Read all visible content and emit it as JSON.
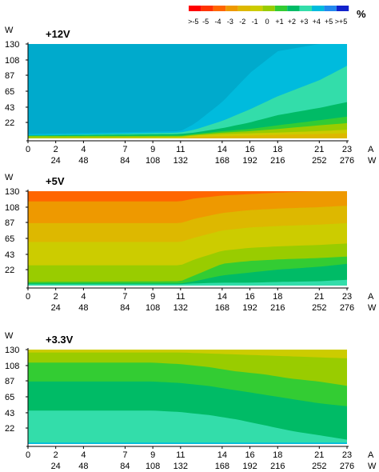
{
  "legend": {
    "unit": "%",
    "labels": [
      ">-5",
      "-5",
      "-4",
      "-3",
      "-2",
      "-1",
      "0",
      "+1",
      "+2",
      "+3",
      "+4",
      "+5",
      ">+5"
    ],
    "colors": [
      "#ff0000",
      "#ff3300",
      "#ff6600",
      "#ee9900",
      "#ddb800",
      "#cccc00",
      "#99cc00",
      "#33cc33",
      "#00bb66",
      "#33ddaa",
      "#00bbdd",
      "#2288ee",
      "#1122cc"
    ]
  },
  "x_axis": {
    "unit_a": "A",
    "unit_w": "W",
    "amp_ticks": [
      "0",
      "2",
      "4",
      "7",
      "9",
      "11",
      "14",
      "16",
      "18",
      "21",
      "23"
    ],
    "watt_ticks": [
      "24",
      "48",
      "84",
      "108",
      "132",
      "168",
      "192",
      "216",
      "252",
      "276"
    ]
  },
  "y_axis": {
    "unit": "W",
    "ticks": [
      "130",
      "108",
      "87",
      "65",
      "43",
      "22"
    ]
  },
  "chart_data": [
    {
      "type": "heatmap",
      "title": "+12V",
      "x_range_amps": [
        0,
        23
      ],
      "y_range_watts": [
        0,
        130
      ],
      "bands_bottom_to_top": [
        {
          "color": "#ddb800",
          "x_amps": [
            0,
            23
          ],
          "upper_boundary_watts": [
            [
              0,
              0
            ],
            [
              11,
              0
            ],
            [
              12,
              2
            ],
            [
              14,
              3
            ],
            [
              16,
              4
            ],
            [
              18,
              5
            ],
            [
              21,
              6
            ],
            [
              23,
              7
            ]
          ]
        },
        {
          "color": "#cccc00",
          "x_amps": [
            0,
            23
          ],
          "upper_boundary_watts": [
            [
              0,
              0
            ],
            [
              11,
              2
            ],
            [
              12,
              4
            ],
            [
              14,
              6
            ],
            [
              16,
              7
            ],
            [
              18,
              8
            ],
            [
              21,
              10
            ],
            [
              23,
              12
            ]
          ]
        },
        {
          "color": "#99cc00",
          "x_amps": [
            0,
            23
          ],
          "upper_boundary_watts": [
            [
              0,
              3
            ],
            [
              11,
              3
            ],
            [
              12,
              5
            ],
            [
              14,
              8
            ],
            [
              16,
              10
            ],
            [
              18,
              13
            ],
            [
              21,
              18
            ],
            [
              23,
              21
            ]
          ]
        },
        {
          "color": "#33cc33",
          "x_amps": [
            0,
            23
          ],
          "upper_boundary_watts": [
            [
              0,
              3
            ],
            [
              11,
              4
            ],
            [
              12,
              6
            ],
            [
              14,
              10
            ],
            [
              16,
              13
            ],
            [
              18,
              18
            ],
            [
              21,
              25
            ],
            [
              23,
              30
            ]
          ]
        },
        {
          "color": "#00bb66",
          "x_amps": [
            0,
            23
          ],
          "upper_boundary_watts": [
            [
              0,
              4
            ],
            [
              11,
              6
            ],
            [
              12,
              8
            ],
            [
              14,
              14
            ],
            [
              16,
              22
            ],
            [
              18,
              32
            ],
            [
              21,
              42
            ],
            [
              23,
              50
            ]
          ]
        },
        {
          "color": "#33ddaa",
          "x_amps": [
            0,
            23
          ],
          "upper_boundary_watts": [
            [
              0,
              4
            ],
            [
              11,
              8
            ],
            [
              12,
              12
            ],
            [
              14,
              24
            ],
            [
              16,
              40
            ],
            [
              18,
              58
            ],
            [
              21,
              80
            ],
            [
              23,
              100
            ]
          ]
        },
        {
          "color": "#00bbdd",
          "x_amps": [
            0,
            23
          ],
          "upper_boundary_watts": [
            [
              0,
              6
            ],
            [
              11,
              10
            ],
            [
              12,
              20
            ],
            [
              14,
              50
            ],
            [
              16,
              90
            ],
            [
              18,
              120
            ],
            [
              21,
              130
            ],
            [
              23,
              130
            ]
          ]
        },
        {
          "color": "#00aacc",
          "x_amps": [
            0,
            23
          ],
          "upper_boundary_watts": [
            [
              0,
              130
            ],
            [
              23,
              130
            ]
          ]
        }
      ]
    },
    {
      "type": "heatmap",
      "title": "+5V",
      "x_range_amps": [
        0,
        23
      ],
      "y_range_watts": [
        0,
        130
      ],
      "bands_bottom_to_top": [
        {
          "color": "#33ddaa",
          "upper_boundary_watts": [
            [
              0,
              2
            ],
            [
              11,
              2
            ],
            [
              12,
              3
            ],
            [
              14,
              4
            ],
            [
              16,
              4
            ],
            [
              18,
              5
            ],
            [
              21,
              6
            ],
            [
              23,
              8
            ]
          ]
        },
        {
          "color": "#00bb66",
          "upper_boundary_watts": [
            [
              0,
              3
            ],
            [
              11,
              3
            ],
            [
              12,
              6
            ],
            [
              14,
              14
            ],
            [
              16,
              18
            ],
            [
              18,
              22
            ],
            [
              21,
              26
            ],
            [
              23,
              30
            ]
          ]
        },
        {
          "color": "#33cc33",
          "upper_boundary_watts": [
            [
              0,
              5
            ],
            [
              11,
              6
            ],
            [
              12,
              14
            ],
            [
              14,
              30
            ],
            [
              16,
              34
            ],
            [
              18,
              36
            ],
            [
              21,
              38
            ],
            [
              23,
              40
            ]
          ]
        },
        {
          "color": "#99cc00",
          "upper_boundary_watts": [
            [
              0,
              28
            ],
            [
              11,
              28
            ],
            [
              12,
              36
            ],
            [
              14,
              48
            ],
            [
              16,
              52
            ],
            [
              18,
              54
            ],
            [
              21,
              56
            ],
            [
              23,
              58
            ]
          ]
        },
        {
          "color": "#cccc00",
          "upper_boundary_watts": [
            [
              0,
              60
            ],
            [
              11,
              60
            ],
            [
              12,
              66
            ],
            [
              14,
              76
            ],
            [
              16,
              80
            ],
            [
              18,
              82
            ],
            [
              21,
              84
            ],
            [
              23,
              86
            ]
          ]
        },
        {
          "color": "#ddb800",
          "upper_boundary_watts": [
            [
              0,
              86
            ],
            [
              11,
              86
            ],
            [
              12,
              92
            ],
            [
              14,
              100
            ],
            [
              16,
              104
            ],
            [
              18,
              106
            ],
            [
              21,
              108
            ],
            [
              23,
              110
            ]
          ]
        },
        {
          "color": "#ee9900",
          "upper_boundary_watts": [
            [
              0,
              116
            ],
            [
              11,
              116
            ],
            [
              12,
              120
            ],
            [
              14,
              124
            ],
            [
              16,
              126
            ],
            [
              18,
              128
            ],
            [
              21,
              130
            ],
            [
              23,
              130
            ]
          ]
        },
        {
          "color": "#ff6600",
          "upper_boundary_watts": [
            [
              0,
              130
            ],
            [
              23,
              130
            ]
          ]
        }
      ]
    },
    {
      "type": "heatmap",
      "title": "+3.3V",
      "x_range_amps": [
        0,
        23
      ],
      "y_range_watts": [
        0,
        130
      ],
      "bands_bottom_to_top": [
        {
          "color": "#00bbdd",
          "upper_boundary_watts": [
            [
              0,
              2
            ],
            [
              11,
              2
            ],
            [
              14,
              2
            ],
            [
              18,
              2
            ],
            [
              23,
              2
            ]
          ]
        },
        {
          "color": "#33ddaa",
          "upper_boundary_watts": [
            [
              0,
              46
            ],
            [
              9,
              46
            ],
            [
              11,
              44
            ],
            [
              13,
              40
            ],
            [
              15,
              34
            ],
            [
              17,
              26
            ],
            [
              19,
              18
            ],
            [
              21,
              12
            ],
            [
              23,
              6
            ]
          ]
        },
        {
          "color": "#00bb66",
          "upper_boundary_watts": [
            [
              0,
              86
            ],
            [
              9,
              86
            ],
            [
              11,
              84
            ],
            [
              13,
              80
            ],
            [
              15,
              74
            ],
            [
              17,
              68
            ],
            [
              19,
              62
            ],
            [
              21,
              56
            ],
            [
              23,
              52
            ]
          ]
        },
        {
          "color": "#33cc33",
          "upper_boundary_watts": [
            [
              0,
              112
            ],
            [
              9,
              112
            ],
            [
              11,
              110
            ],
            [
              13,
              106
            ],
            [
              15,
              100
            ],
            [
              17,
              96
            ],
            [
              19,
              90
            ],
            [
              21,
              86
            ],
            [
              23,
              80
            ]
          ]
        },
        {
          "color": "#99cc00",
          "upper_boundary_watts": [
            [
              0,
              118
            ],
            [
              9,
              118
            ],
            [
              11,
              118
            ],
            [
              13,
              116
            ],
            [
              15,
              114
            ],
            [
              17,
              112
            ],
            [
              19,
              110
            ],
            [
              21,
              108
            ],
            [
              23,
              106
            ]
          ]
        },
        {
          "color": "#99cc00",
          "upper_boundary_watts": [
            [
              0,
              126
            ],
            [
              11,
              126
            ],
            [
              14,
              124
            ],
            [
              17,
              122
            ],
            [
              20,
              120
            ],
            [
              23,
              118
            ]
          ]
        },
        {
          "color": "#cccc00",
          "upper_boundary_watts": [
            [
              0,
              130
            ],
            [
              23,
              130
            ]
          ]
        }
      ]
    }
  ]
}
